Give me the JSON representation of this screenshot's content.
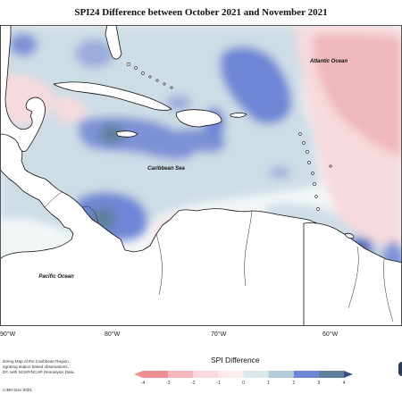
{
  "title": "SPI24 Difference between October 2021 and November 2021",
  "map": {
    "labels": {
      "atlantic": "Atlantic Ocean",
      "caribbean": "Caribbean Sea",
      "pacific": "Pacific Ocean"
    },
    "longitude_ticks": [
      "90°W",
      "80°W",
      "70°W",
      "60°W"
    ]
  },
  "credits": {
    "lines": [
      "itoring Map of the Caribbean Region.",
      "egrating station based observations,",
      "DF, with NCEP/NCAR Reanalysis Data."
    ],
    "date": "CIMH Dec-2021"
  },
  "legend": {
    "title": "SPI Difference",
    "ticks": [
      "-4",
      "-3",
      "-2",
      "-1",
      "0",
      "1",
      "2",
      "3",
      "4"
    ],
    "colors": [
      "#f08c94",
      "#f6b6bc",
      "#fbd9dc",
      "#fdebed",
      "#dbe9ef",
      "#b4ccd9",
      "#6f86d6",
      "#607f9c",
      "#3f4d86"
    ]
  }
}
